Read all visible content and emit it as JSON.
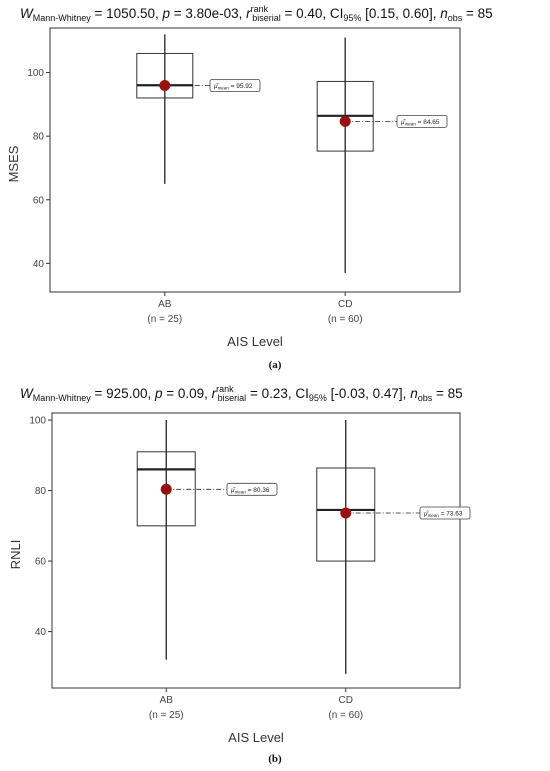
{
  "chart_data": [
    {
      "type": "box",
      "panel": "(a)",
      "title": {
        "W_sub": "Mann-Whitney",
        "W_val": "= 1050.50,",
        "p_val": "= 3.80e-03,",
        "r_val": "= 0.40, CI",
        "ci_sub": "95%",
        "ci_val": "[0.15, 0.60],",
        "n_sub": "obs",
        "n_val": "= 85"
      },
      "ylabel": "MSES",
      "xlabel": "AIS Level",
      "ylim": [
        31,
        114
      ],
      "yticks": [
        40,
        60,
        80,
        100
      ],
      "categories": [
        {
          "name": "AB",
          "n_label": "(n = 25)",
          "min": 65,
          "q1": 92,
          "median": 96,
          "q3": 106,
          "max": 112,
          "mean": 95.92,
          "mean_label": "= 95.92"
        },
        {
          "name": "CD",
          "n_label": "(n = 60)",
          "min": 37,
          "q1": 75.3,
          "median": 86.4,
          "q3": 97.2,
          "max": 111,
          "mean": 84.65,
          "mean_label": "= 84.65"
        }
      ]
    },
    {
      "type": "box",
      "panel": "(b)",
      "title": {
        "W_sub": "Mann-Whitney",
        "W_val": "= 925.00,",
        "p_val": "= 0.09,",
        "r_val": "= 0.23, CI",
        "ci_sub": "95%",
        "ci_val": "[-0.03, 0.47],",
        "n_sub": "obs",
        "n_val": "= 85"
      },
      "ylabel": "RNLI",
      "xlabel": "AIS Level",
      "ylim": [
        24,
        102
      ],
      "yticks": [
        40,
        60,
        80,
        100
      ],
      "categories": [
        {
          "name": "AB",
          "n_label": "(n = 25)",
          "min": 32,
          "q1": 70,
          "median": 86,
          "q3": 91,
          "max": 100,
          "mean": 80.36,
          "mean_label": "= 80.36"
        },
        {
          "name": "CD",
          "n_label": "(n = 60)",
          "min": 28,
          "q1": 60,
          "median": 74.5,
          "q3": 86.4,
          "max": 100,
          "mean": 73.63,
          "mean_label": "= 73.63"
        }
      ]
    }
  ],
  "colors": {
    "mean_point": "#9b0f0f",
    "box_stroke": "#333333",
    "frame": "#333333"
  }
}
